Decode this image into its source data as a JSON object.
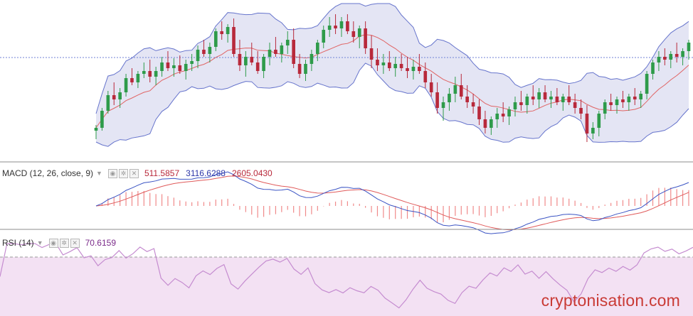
{
  "panes": {
    "macd": {
      "label": "MACD (12, 26, close, 9)",
      "v1": "511.5857",
      "v2": "3116.6288",
      "v3": "2605.0430"
    },
    "rsi": {
      "label": "RSI (14)",
      "v1": "70.6159"
    }
  },
  "watermark": "cryptonisation.com",
  "colors": {
    "up": "#2e9b4a",
    "down": "#b8293b",
    "bb_band": "#6674cc",
    "bb_fill": "#e4e5f4",
    "bb_mid": "#e06464",
    "macd_line": "#3b54c4",
    "signal_line": "#e05a5a",
    "hist": "#f08a8a",
    "rsi_line": "#c58cd0",
    "rsi_fill": "#f3e1f3",
    "price_line": "#7182d6",
    "value_macd": "#b8293b",
    "value_signal": "#2c36a8",
    "value_hist": "#b8293b",
    "value_rsi": "#7b2b8a"
  },
  "chart_data": [
    {
      "type": "candlestick",
      "indicators": [
        "Bollinger Bands",
        "Bollinger basis"
      ],
      "grid": false,
      "candles": [
        [
          0.18,
          0.22,
          0.12,
          0.2
        ],
        [
          0.2,
          0.34,
          0.18,
          0.32
        ],
        [
          0.32,
          0.46,
          0.3,
          0.43
        ],
        [
          0.43,
          0.52,
          0.36,
          0.4
        ],
        [
          0.4,
          0.48,
          0.34,
          0.45
        ],
        [
          0.45,
          0.58,
          0.42,
          0.55
        ],
        [
          0.55,
          0.62,
          0.5,
          0.52
        ],
        [
          0.52,
          0.6,
          0.48,
          0.58
        ],
        [
          0.58,
          0.66,
          0.55,
          0.6
        ],
        [
          0.6,
          0.68,
          0.52,
          0.56
        ],
        [
          0.56,
          0.63,
          0.5,
          0.6
        ],
        [
          0.6,
          0.7,
          0.56,
          0.66
        ],
        [
          0.66,
          0.74,
          0.6,
          0.62
        ],
        [
          0.62,
          0.69,
          0.56,
          0.64
        ],
        [
          0.64,
          0.71,
          0.58,
          0.6
        ],
        [
          0.6,
          0.68,
          0.54,
          0.65
        ],
        [
          0.65,
          0.72,
          0.6,
          0.67
        ],
        [
          0.67,
          0.78,
          0.62,
          0.75
        ],
        [
          0.75,
          0.82,
          0.7,
          0.72
        ],
        [
          0.72,
          0.8,
          0.66,
          0.77
        ],
        [
          0.77,
          0.9,
          0.74,
          0.88
        ],
        [
          0.88,
          0.95,
          0.82,
          0.86
        ],
        [
          0.86,
          0.93,
          0.8,
          0.91
        ],
        [
          0.91,
          0.97,
          0.7,
          0.72
        ],
        [
          0.72,
          0.82,
          0.6,
          0.64
        ],
        [
          0.64,
          0.74,
          0.56,
          0.7
        ],
        [
          0.7,
          0.8,
          0.64,
          0.66
        ],
        [
          0.66,
          0.74,
          0.58,
          0.6
        ],
        [
          0.6,
          0.72,
          0.55,
          0.7
        ],
        [
          0.7,
          0.8,
          0.64,
          0.75
        ],
        [
          0.75,
          0.84,
          0.7,
          0.72
        ],
        [
          0.72,
          0.8,
          0.66,
          0.78
        ],
        [
          0.78,
          0.88,
          0.72,
          0.82
        ],
        [
          0.82,
          0.9,
          0.62,
          0.65
        ],
        [
          0.65,
          0.72,
          0.55,
          0.58
        ],
        [
          0.58,
          0.68,
          0.53,
          0.65
        ],
        [
          0.65,
          0.75,
          0.6,
          0.72
        ],
        [
          0.72,
          0.82,
          0.67,
          0.8
        ],
        [
          0.8,
          0.92,
          0.76,
          0.89
        ],
        [
          0.89,
          0.98,
          0.84,
          0.92
        ],
        [
          0.92,
          1.0,
          0.86,
          0.9
        ],
        [
          0.9,
          0.98,
          0.84,
          0.95
        ],
        [
          0.95,
          1.0,
          0.86,
          0.88
        ],
        [
          0.88,
          0.95,
          0.8,
          0.84
        ],
        [
          0.84,
          0.92,
          0.76,
          0.9
        ],
        [
          0.9,
          0.95,
          0.72,
          0.76
        ],
        [
          0.76,
          0.85,
          0.62,
          0.68
        ],
        [
          0.68,
          0.76,
          0.6,
          0.64
        ],
        [
          0.64,
          0.72,
          0.58,
          0.66
        ],
        [
          0.66,
          0.74,
          0.6,
          0.62
        ],
        [
          0.62,
          0.7,
          0.56,
          0.65
        ],
        [
          0.65,
          0.72,
          0.6,
          0.62
        ],
        [
          0.62,
          0.7,
          0.55,
          0.6
        ],
        [
          0.6,
          0.68,
          0.54,
          0.63
        ],
        [
          0.63,
          0.72,
          0.58,
          0.6
        ],
        [
          0.6,
          0.66,
          0.48,
          0.52
        ],
        [
          0.52,
          0.58,
          0.42,
          0.45
        ],
        [
          0.45,
          0.52,
          0.3,
          0.34
        ],
        [
          0.34,
          0.42,
          0.25,
          0.38
        ],
        [
          0.38,
          0.48,
          0.32,
          0.44
        ],
        [
          0.44,
          0.56,
          0.38,
          0.5
        ],
        [
          0.5,
          0.58,
          0.4,
          0.42
        ],
        [
          0.42,
          0.5,
          0.34,
          0.38
        ],
        [
          0.38,
          0.44,
          0.3,
          0.35
        ],
        [
          0.35,
          0.4,
          0.22,
          0.26
        ],
        [
          0.26,
          0.32,
          0.16,
          0.2
        ],
        [
          0.2,
          0.28,
          0.15,
          0.26
        ],
        [
          0.26,
          0.34,
          0.2,
          0.3
        ],
        [
          0.3,
          0.38,
          0.24,
          0.28
        ],
        [
          0.28,
          0.35,
          0.22,
          0.33
        ],
        [
          0.33,
          0.42,
          0.28,
          0.38
        ],
        [
          0.38,
          0.46,
          0.32,
          0.36
        ],
        [
          0.36,
          0.44,
          0.3,
          0.42
        ],
        [
          0.42,
          0.5,
          0.36,
          0.4
        ],
        [
          0.4,
          0.48,
          0.34,
          0.45
        ],
        [
          0.45,
          0.5,
          0.38,
          0.4
        ],
        [
          0.4,
          0.46,
          0.34,
          0.42
        ],
        [
          0.42,
          0.48,
          0.36,
          0.38
        ],
        [
          0.38,
          0.44,
          0.32,
          0.42
        ],
        [
          0.42,
          0.5,
          0.36,
          0.38
        ],
        [
          0.38,
          0.44,
          0.3,
          0.34
        ],
        [
          0.34,
          0.4,
          0.26,
          0.3
        ],
        [
          0.3,
          0.36,
          0.1,
          0.16
        ],
        [
          0.16,
          0.24,
          0.12,
          0.2
        ],
        [
          0.2,
          0.32,
          0.14,
          0.3
        ],
        [
          0.3,
          0.4,
          0.26,
          0.38
        ],
        [
          0.38,
          0.44,
          0.32,
          0.36
        ],
        [
          0.36,
          0.42,
          0.3,
          0.4
        ],
        [
          0.4,
          0.46,
          0.34,
          0.38
        ],
        [
          0.38,
          0.44,
          0.32,
          0.42
        ],
        [
          0.42,
          0.48,
          0.36,
          0.4
        ],
        [
          0.4,
          0.46,
          0.34,
          0.44
        ],
        [
          0.44,
          0.6,
          0.4,
          0.58
        ],
        [
          0.58,
          0.68,
          0.54,
          0.66
        ],
        [
          0.66,
          0.74,
          0.6,
          0.7
        ],
        [
          0.7,
          0.76,
          0.64,
          0.68
        ],
        [
          0.68,
          0.74,
          0.62,
          0.72
        ],
        [
          0.72,
          0.8,
          0.66,
          0.7
        ],
        [
          0.7,
          0.76,
          0.64,
          0.74
        ],
        [
          0.74,
          0.82,
          0.68,
          0.8
        ]
      ]
    },
    {
      "type": "line",
      "title": "MACD (12, 26, close, 9)",
      "values_shown": [
        511.5857,
        3116.6288,
        2605.043
      ]
    },
    {
      "type": "line",
      "title": "RSI (14)",
      "values_shown": [
        70.6159
      ]
    }
  ]
}
